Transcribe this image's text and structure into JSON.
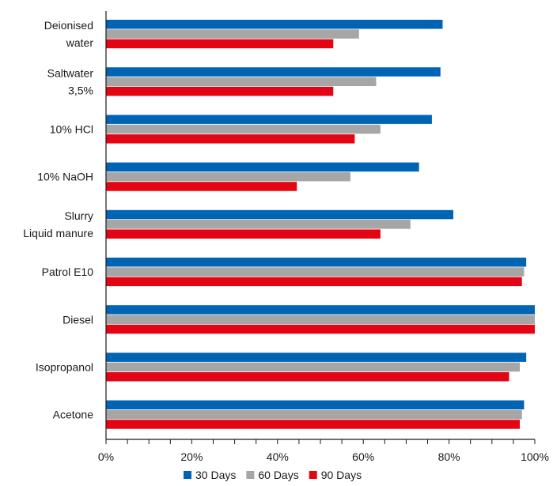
{
  "chart_data": {
    "type": "bar",
    "orientation": "horizontal",
    "categories": [
      [
        "Deionised",
        "water"
      ],
      [
        "Saltwater",
        "3,5%"
      ],
      [
        "10% HCl"
      ],
      [
        "10% NaOH"
      ],
      [
        "Slurry",
        "Liquid manure"
      ],
      [
        "Patrol E10"
      ],
      [
        "Diesel"
      ],
      [
        "Isopropanol"
      ],
      [
        "Acetone"
      ]
    ],
    "series": [
      {
        "name": "30 Days",
        "color": "#0064b4",
        "values": [
          78.5,
          78,
          76,
          73,
          81,
          98,
          100,
          98,
          97.5
        ]
      },
      {
        "name": "60 Days",
        "color": "#a6a6a6",
        "values": [
          59,
          63,
          64,
          57,
          71,
          97.5,
          100,
          96.5,
          97
        ]
      },
      {
        "name": "90 Days",
        "color": "#e30513",
        "values": [
          53,
          53,
          58,
          44.5,
          64,
          97,
          100,
          94,
          96.5
        ]
      }
    ],
    "xlim": [
      0,
      100
    ],
    "x_ticks": [
      "0%",
      "20%",
      "40%",
      "60%",
      "80%",
      "100%"
    ],
    "grid": false,
    "legend_position": "bottom"
  }
}
